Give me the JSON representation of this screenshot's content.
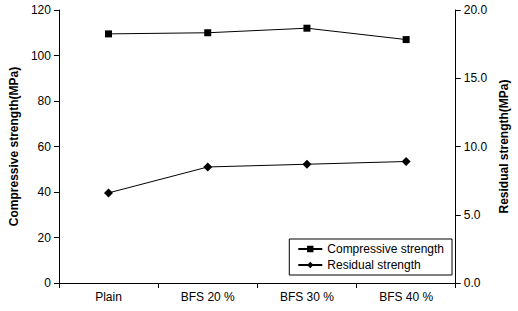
{
  "chart_data": {
    "type": "line",
    "categories": [
      "Plain",
      "BFS 20 %",
      "BFS 30 %",
      "BFS 40 %"
    ],
    "y_label": "Compressive strength(MPa)",
    "y2_label": "Residual strength(MPa)",
    "ylim": [
      0,
      120
    ],
    "yticks": [
      0,
      20,
      40,
      60,
      80,
      100,
      120
    ],
    "y2lim": [
      0,
      20
    ],
    "y2ticks": [
      {
        "value": 0,
        "label": "0.0"
      },
      {
        "value": 5,
        "label": "5.0"
      },
      {
        "value": 10,
        "label": "10.0"
      },
      {
        "value": 15,
        "label": "15.0"
      },
      {
        "value": 20,
        "label": "20.0"
      }
    ],
    "grid": false,
    "legend": "lower right",
    "series": [
      {
        "name": "Compressive strength",
        "color": "#000000",
        "marker": "square",
        "line_style": "solid",
        "values": [
          109.5,
          110,
          112,
          107
        ]
      },
      {
        "name": "Residual strength",
        "color": "#000000",
        "marker": "diamond",
        "line_style": "solid",
        "axis": "y2",
        "values": [
          6.6,
          8.5,
          8.7,
          8.9
        ]
      }
    ]
  }
}
